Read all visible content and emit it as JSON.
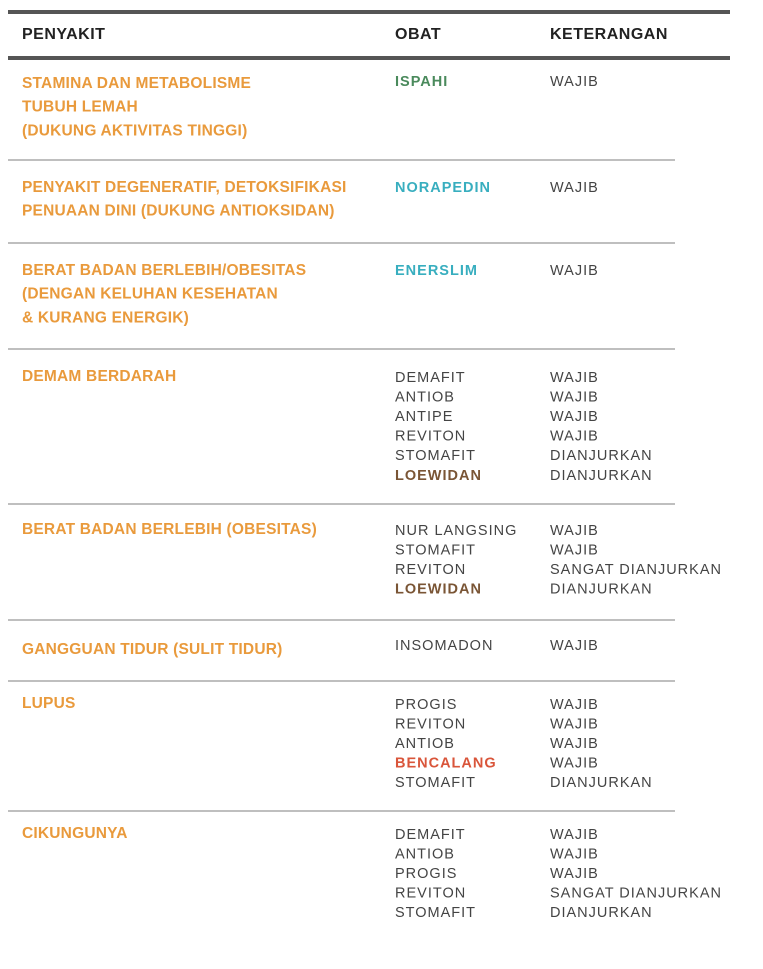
{
  "table": {
    "headers": [
      "PENYAKIT",
      "OBAT",
      "KETERANGAN"
    ],
    "rows": [
      {
        "disease": [
          "STAMINA DAN METABOLISME",
          "TUBUH LEMAH",
          "(DUKUNG AKTIVITAS TINGGI)"
        ],
        "drugs": [
          {
            "name": "ISPAHI",
            "note": "WAJIB",
            "color": "#4a8a5c"
          }
        ]
      },
      {
        "disease": [
          "PENYAKIT DEGENERATIF, DETOKSIFIKASI",
          "PENUAAN DINI (DUKUNG ANTIOKSIDAN)"
        ],
        "drugs": [
          {
            "name": "NORAPEDIN",
            "note": "WAJIB",
            "color": "#38aebf"
          }
        ]
      },
      {
        "disease": [
          "BERAT BADAN BERLEBIH/OBESITAS",
          "(DENGAN KELUHAN KESEHATAN",
          "& KURANG ENERGIK)"
        ],
        "drugs": [
          {
            "name": "ENERSLIM",
            "note": "WAJIB",
            "color": "#38aebf"
          }
        ]
      },
      {
        "disease": [
          "DEMAM BERDARAH"
        ],
        "drugs": [
          {
            "name": "DEMAFIT",
            "note": "WAJIB"
          },
          {
            "name": "ANTIOB",
            "note": "WAJIB"
          },
          {
            "name": "ANTIPE",
            "note": "WAJIB"
          },
          {
            "name": "REVITON",
            "note": "WAJIB"
          },
          {
            "name": "STOMAFIT",
            "note": "DIANJURKAN"
          },
          {
            "name": "LOEWIDAN",
            "note": "DIANJURKAN",
            "color": "#7a5535"
          }
        ]
      },
      {
        "disease": [
          "BERAT BADAN BERLEBIH (OBESITAS)"
        ],
        "drugs": [
          {
            "name": "NUR LANGSING",
            "note": "WAJIB"
          },
          {
            "name": "STOMAFIT",
            "note": "WAJIB"
          },
          {
            "name": "REVITON",
            "note": "SANGAT DIANJURKAN"
          },
          {
            "name": "LOEWIDAN",
            "note": "DIANJURKAN",
            "color": "#7a5535"
          }
        ]
      },
      {
        "disease": [
          "GANGGUAN TIDUR (SULIT TIDUR)"
        ],
        "drugs": [
          {
            "name": "INSOMADON",
            "note": "WAJIB"
          }
        ]
      },
      {
        "disease": [
          "LUPUS"
        ],
        "drugs": [
          {
            "name": "PROGIS",
            "note": "WAJIB"
          },
          {
            "name": "REVITON",
            "note": "WAJIB"
          },
          {
            "name": "ANTIOB",
            "note": "WAJIB"
          },
          {
            "name": "BENCALANG",
            "note": "WAJIB",
            "color": "#d9553a"
          },
          {
            "name": "STOMAFIT",
            "note": "DIANJURKAN"
          }
        ]
      },
      {
        "disease": [
          "CIKUNGUNYA"
        ],
        "drugs": [
          {
            "name": "DEMAFIT",
            "note": "WAJIB"
          },
          {
            "name": "ANTIOB",
            "note": "WAJIB"
          },
          {
            "name": "PROGIS",
            "note": "WAJIB"
          },
          {
            "name": "REVITON",
            "note": "SANGAT DIANJURKAN"
          },
          {
            "name": "STOMAFIT",
            "note": "DIANJURKAN"
          }
        ]
      }
    ]
  }
}
